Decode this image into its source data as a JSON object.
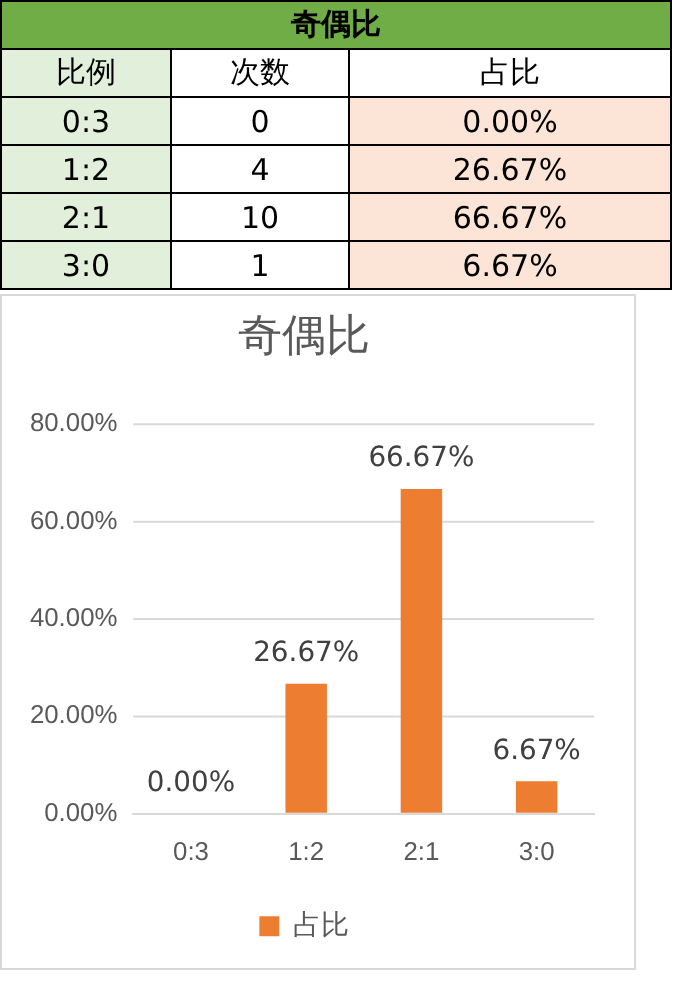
{
  "chart_data": [
    {
      "type": "other",
      "title": "奇偶比",
      "xlabel": "比例",
      "categories": [
        "0:3",
        "1:2",
        "2:1",
        "3:0"
      ],
      "data_labels": true,
      "series": [
        {
          "name": "次数",
          "values": [
            0,
            4,
            10,
            1
          ]
        },
        {
          "name": "占比",
          "color": "#fce4d6",
          "values": [
            0,
            26.67,
            66.67,
            6.67
          ],
          "value_labels": [
            "0.00%",
            "26.67%",
            "66.67%",
            "6.67%"
          ]
        }
      ]
    },
    {
      "type": "bar",
      "title": "奇偶比",
      "categories": [
        "0:3",
        "1:2",
        "2:1",
        "3:0"
      ],
      "series": [
        {
          "name": "占比",
          "color": "#ed7d31",
          "values": [
            0,
            26.67,
            66.67,
            6.67
          ],
          "value_labels": [
            "0.00%",
            "26.67%",
            "66.67%",
            "6.67%"
          ]
        }
      ],
      "ylim": [
        0,
        80
      ],
      "yticks": [
        {
          "value": 0,
          "label": "0.00%"
        },
        {
          "value": 20,
          "label": "20.00%"
        },
        {
          "value": 40,
          "label": "40.00%"
        },
        {
          "value": 60,
          "label": "60.00%"
        },
        {
          "value": 80,
          "label": "80.00%"
        }
      ],
      "grid": "y",
      "legend": "bottom"
    }
  ]
}
